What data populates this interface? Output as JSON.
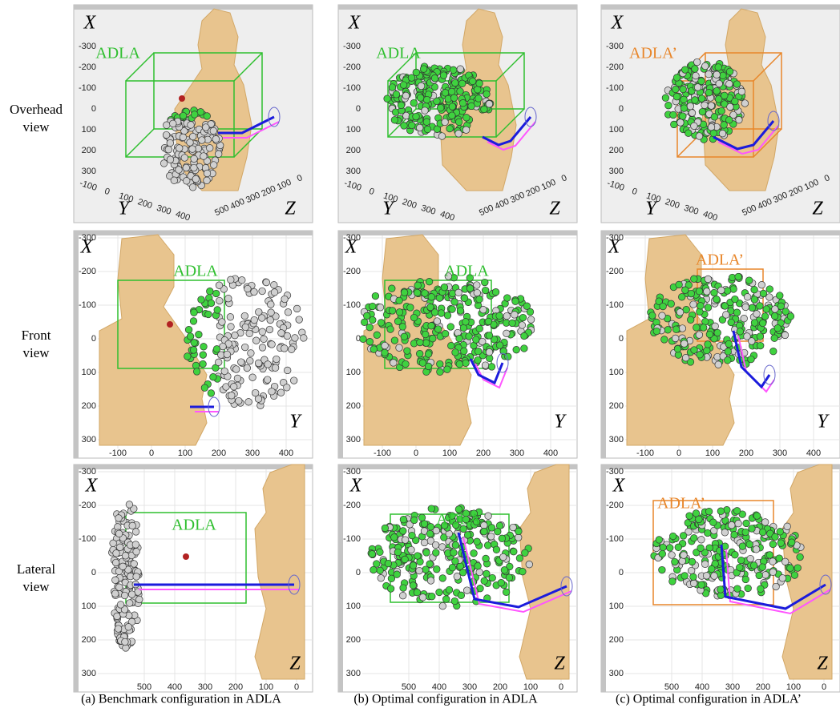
{
  "row_labels": [
    [
      "Overhead",
      "view"
    ],
    [
      "Front",
      "view"
    ],
    [
      "Lateral",
      "view"
    ]
  ],
  "captions": [
    "(a) Benchmark configuration in ADLA",
    "(b) Optimal configuration in ADLA",
    "(c) Optimal configuration in ADLA’"
  ],
  "columns": [
    {
      "region_label": "ADLA",
      "color": "#2fbf2f"
    },
    {
      "region_label": "ADLA",
      "color": "#2fbf2f"
    },
    {
      "region_label": "ADLA’",
      "color": "#e8862a"
    }
  ],
  "views": {
    "overhead": {
      "axis_letters": [
        "X",
        "Y",
        "Z"
      ],
      "x_ticks": [
        -300,
        -200,
        -100,
        0,
        100,
        200,
        300
      ],
      "y_ticks": [
        -100,
        0,
        100,
        200,
        300,
        400
      ],
      "z_ticks": [
        0,
        100,
        200,
        300,
        400,
        500
      ]
    },
    "front": {
      "axis_letters": [
        "X",
        "Y"
      ],
      "x_ticks": [
        -300,
        -200,
        -100,
        0,
        100,
        200,
        300
      ],
      "y_ticks": [
        -100,
        0,
        100,
        200,
        300,
        400
      ]
    },
    "lateral": {
      "axis_letters": [
        "X",
        "Z"
      ],
      "x_ticks": [
        -300,
        -200,
        -100,
        0,
        100,
        200,
        300
      ],
      "z_ticks": [
        500,
        400,
        300,
        200,
        100,
        0
      ]
    }
  }
}
